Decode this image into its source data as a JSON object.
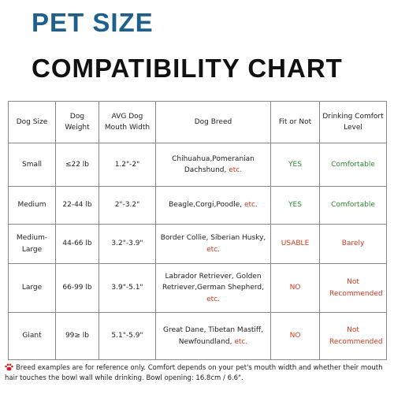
{
  "header": {
    "title": "PET SIZE",
    "subtitle": "COMPATIBILITY CHART"
  },
  "table": {
    "columns": [
      "Dog Size",
      "Dog Weight",
      "AVG Dog Mouth Width",
      "Dog Breed",
      "Fit or Not",
      "Drinking Comfort Level"
    ],
    "rows": [
      {
        "size": "Small",
        "weight": "≤22 lb",
        "mouth": "1.2\"-2\"",
        "breed": "Chihuahua,Pomeranian Dachshund,",
        "etc": "etc.",
        "fit": "YES",
        "fit_color": "#2a8a2a",
        "comfort": "Comfortable",
        "comfort_color": "#2a8a2a"
      },
      {
        "size": "Medium",
        "weight": "22-44 lb",
        "mouth": "2\"-3.2\"",
        "breed": "Beagle,Corgi,Poodle,",
        "etc": "etc.",
        "fit": "YES",
        "fit_color": "#2a8a2a",
        "comfort": "Comfortable",
        "comfort_color": "#2a8a2a"
      },
      {
        "size": "Medium-Large",
        "weight": "44-66 lb",
        "mouth": "3.2\"-3.9\"",
        "breed": "Border Collie, Siberian Husky,",
        "etc": "etc.",
        "fit": "USABLE",
        "fit_color": "#d03a1a",
        "comfort": "Barely",
        "comfort_color": "#d03a1a"
      },
      {
        "size": "Large",
        "weight": "66-99 lb",
        "mouth": "3.9\"-5.1\"",
        "breed": "Labrador Retriever, Golden Retriever,German Shepherd,",
        "etc": "etc.",
        "fit": "NO",
        "fit_color": "#d03a1a",
        "comfort": "Not Recommended",
        "comfort_color": "#d03a1a"
      },
      {
        "size": "Giant",
        "weight": "99≥ lb",
        "mouth": "5.1\"-5.9\"",
        "breed": "Great Dane, Tibetan Mastiff, Newfoundland,",
        "etc": "etc.",
        "fit": "NO",
        "fit_color": "#d03a1a",
        "comfort": "Not Recommended",
        "comfort_color": "#d03a1a"
      }
    ]
  },
  "footnote": "Breed examples are for reference only. Comfort depends on your pet's mouth width and whether their mouth hair touches the bowl wall while drinking. Bowl opening: 16.8cm / 6.6\"."
}
